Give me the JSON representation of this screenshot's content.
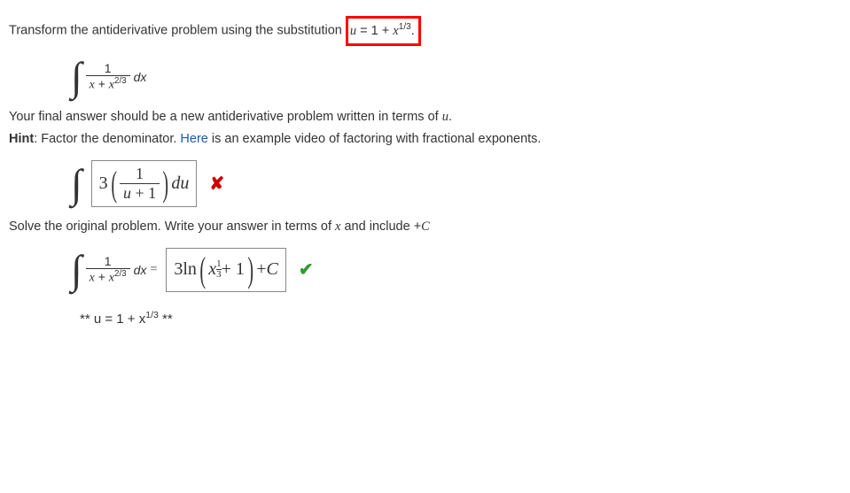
{
  "problem": {
    "intro_prefix": "Transform the antiderivative problem using the substitution",
    "substitution_lhs": "u",
    "substitution_eq": " = 1 + ",
    "substitution_rhs_base": "x",
    "substitution_rhs_exp": "1/3",
    "intro_suffix": "."
  },
  "integral1": {
    "numerator": "1",
    "denom_t1_base": "x",
    "denom_plus": " + ",
    "denom_t2_base": "x",
    "denom_t2_exp": "2/3",
    "dx": "dx"
  },
  "instructions": {
    "line1_a": "Your final answer should be a new antiderivative problem written in terms of ",
    "line1_var": "u",
    "line1_b": ".",
    "hint_label": "Hint",
    "hint_a": ": Factor the denominator. ",
    "hint_link": "Here",
    "hint_b": " is an example video of factoring with fractional exponents."
  },
  "answer1": {
    "coef": "3",
    "num": "1",
    "den_a": "u",
    "den_b": " + 1",
    "du": "du",
    "status": "incorrect"
  },
  "part2": {
    "prompt_a": "Solve the original problem. Write your answer in terms of ",
    "prompt_var": "x",
    "prompt_b": " and include ",
    "prompt_c": "+ C"
  },
  "integral2": {
    "numerator": "1",
    "denom_t1_base": "x",
    "denom_plus": " + ",
    "denom_t2_base": "x",
    "denom_t2_exp": "2/3",
    "dx": "dx",
    "equals": " = "
  },
  "answer2": {
    "coef": "3 ",
    "fn": "ln",
    "inner_base": "x",
    "inner_exp_num": "1",
    "inner_exp_den": "3",
    "inner_tail": " + 1",
    "tail": " + ",
    "const": "C",
    "status": "correct"
  },
  "footnote": {
    "stars1": "** ",
    "u": "u",
    "body": " = 1 + x",
    "exp": "1/3",
    "stars2": " **"
  },
  "style": {
    "highlight_border": "#ff0000",
    "link_color": "#1a5ca8",
    "wrong_color": "#cc0000",
    "correct_color": "#339933"
  }
}
